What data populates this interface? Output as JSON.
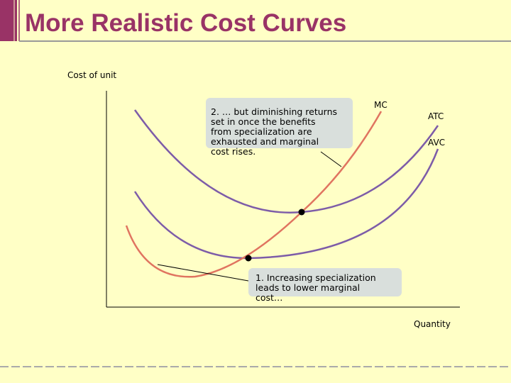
{
  "header": {
    "title": "More Realistic Cost Curves"
  },
  "diagram": {
    "y_axis_label": "Cost of unit",
    "x_axis_label": "Quantity",
    "curves": [
      {
        "label": "MC"
      },
      {
        "label": "ATC"
      },
      {
        "label": "AVC"
      }
    ],
    "annotations": [
      {
        "lines": [
          "2. … but diminishing returns",
          "set in once the benefits",
          "from specialization are",
          "exhausted and marginal",
          "cost rises."
        ]
      },
      {
        "lines": [
          "1. Increasing specialization",
          "leads to lower marginal",
          "cost…"
        ]
      }
    ]
  }
}
